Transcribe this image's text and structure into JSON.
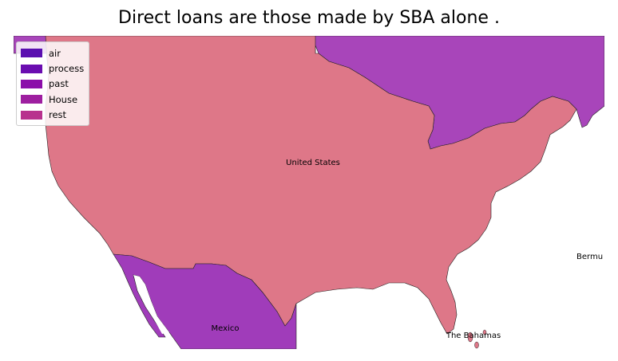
{
  "title": "Direct loans are those made by SBA alone .",
  "legend": [
    {
      "label": "air",
      "color": "#5a0fb0"
    },
    {
      "label": "process",
      "color": "#6a0db0"
    },
    {
      "label": "past",
      "color": "#8b0faa"
    },
    {
      "label": "House",
      "color": "#9e1fa0"
    },
    {
      "label": "rest",
      "color": "#b8328e"
    }
  ],
  "regions": {
    "united_states": {
      "label": "United States",
      "color": "#de7788"
    },
    "canada": {
      "color": "#a845ba"
    },
    "mexico": {
      "label": "Mexico",
      "color": "#a03cba"
    },
    "bahamas": {
      "label": "The Bahamas",
      "color": "#de7788"
    },
    "bermuda": {
      "label": "Bermu"
    }
  }
}
